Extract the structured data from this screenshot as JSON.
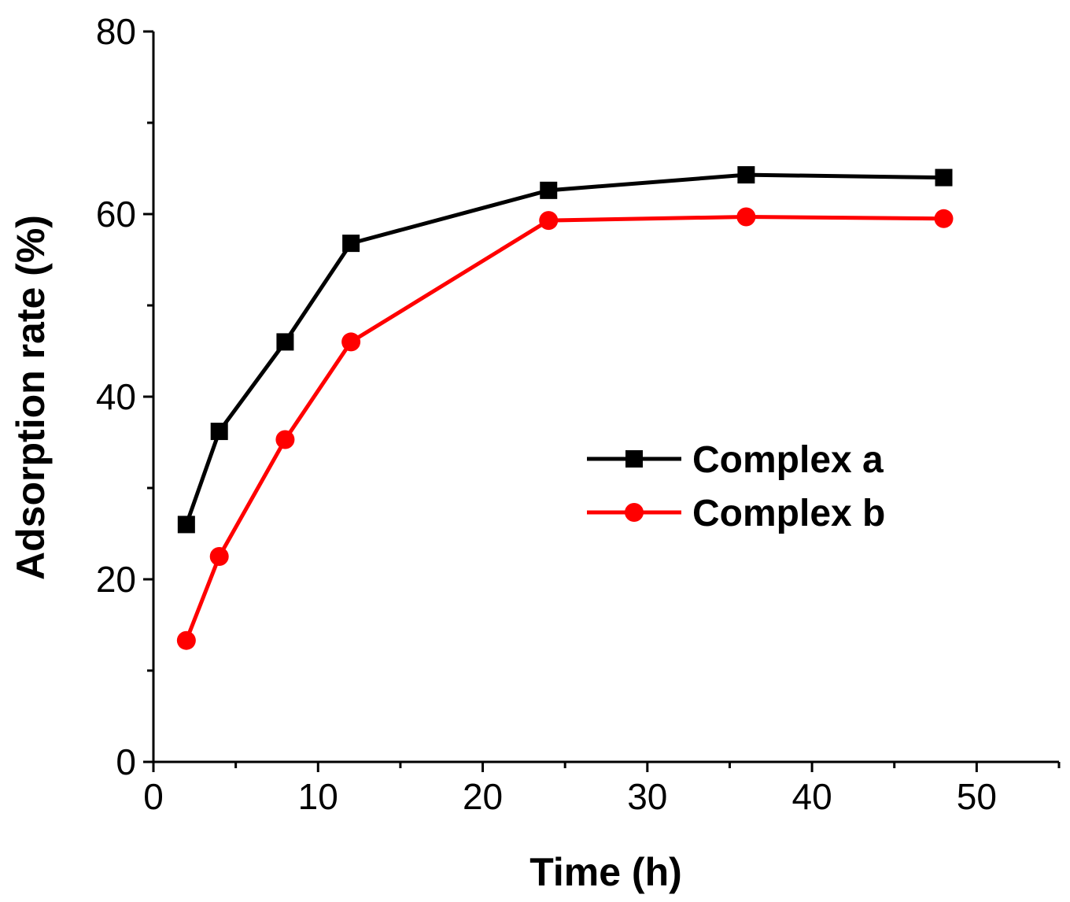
{
  "chart_data": {
    "type": "line",
    "title": "",
    "xlabel": "Time (h)",
    "ylabel": "Adsorption rate (%)",
    "xlim": [
      0,
      55
    ],
    "ylim": [
      0,
      80
    ],
    "xticks": [
      0,
      10,
      20,
      30,
      40,
      50
    ],
    "yticks": [
      0,
      20,
      40,
      60,
      80
    ],
    "x_minor_step": 5,
    "y_minor_step": 10,
    "grid": false,
    "legend_position": "center-right",
    "series": [
      {
        "name": "Complex a",
        "marker": "square",
        "color": "#000000",
        "x": [
          2,
          4,
          8,
          12,
          24,
          36,
          48
        ],
        "y": [
          26,
          36.2,
          46,
          56.8,
          62.6,
          64.3,
          64
        ]
      },
      {
        "name": "Complex b",
        "marker": "circle",
        "color": "#ff0000",
        "x": [
          2,
          4,
          8,
          12,
          24,
          36,
          48
        ],
        "y": [
          13.3,
          22.5,
          35.3,
          46,
          59.3,
          59.7,
          59.5
        ]
      }
    ]
  }
}
